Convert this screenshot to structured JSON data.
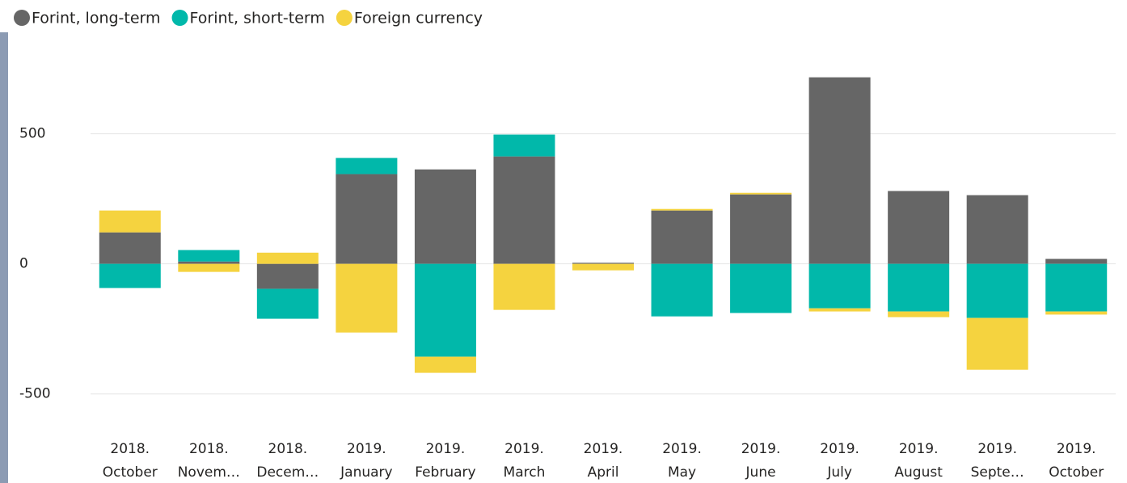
{
  "chart_data": {
    "type": "bar",
    "stacked": true,
    "categories": [
      [
        "2018.",
        "October"
      ],
      [
        "2018.",
        "Novem…"
      ],
      [
        "2018.",
        "Decem…"
      ],
      [
        "2019.",
        "January"
      ],
      [
        "2019.",
        "February"
      ],
      [
        "2019.",
        "March"
      ],
      [
        "2019.",
        "April"
      ],
      [
        "2019.",
        "May"
      ],
      [
        "2019.",
        "June"
      ],
      [
        "2019.",
        "July"
      ],
      [
        "2019.",
        "August"
      ],
      [
        "2019.",
        "Septe…"
      ],
      [
        "2019.",
        "October"
      ]
    ],
    "series": [
      {
        "name": "Forint, long-term",
        "color": "#666666",
        "values": [
          121,
          9,
          -96,
          345,
          363,
          413,
          4,
          205,
          267,
          717,
          280,
          264,
          19
        ]
      },
      {
        "name": "Forint, short-term",
        "color": "#01b8aa",
        "values": [
          -93,
          44,
          -115,
          62,
          -357,
          84,
          0,
          -202,
          -189,
          -171,
          -183,
          -208,
          -183
        ]
      },
      {
        "name": "Foreign currency",
        "color": "#f5d33f",
        "values": [
          84,
          -31,
          43,
          -264,
          -62,
          -177,
          -25,
          6,
          6,
          -12,
          -22,
          -199,
          -12
        ]
      }
    ],
    "ylim": [
      -650,
      800
    ],
    "yticks": [
      -500,
      0,
      500
    ],
    "grid": true,
    "legend": "top-left"
  }
}
